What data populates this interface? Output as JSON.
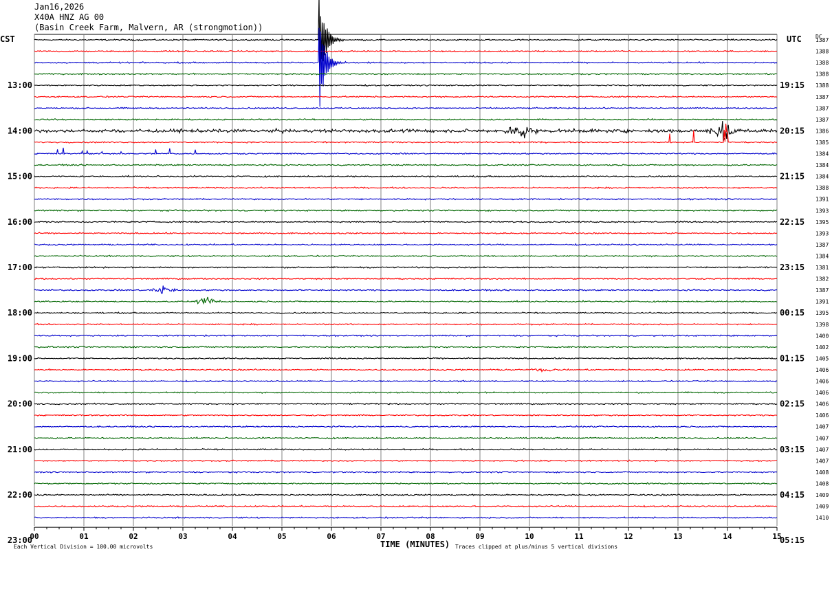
{
  "header": {
    "date": "Jan16,2026",
    "station": "X40A HNZ AG 00",
    "location": "(Basin Creek Farm, Malvern, AR (strongmotion))"
  },
  "left_tz": "CST",
  "right_tz": "UTC",
  "dc_label": "DC",
  "footer": {
    "xlabel": "TIME (MINUTES)",
    "scale": "Each Vertical Division =  100.00 microvolts",
    "clip": "Traces clipped at plus/minus 5 vertical divisions"
  },
  "colors": {
    "cycle": [
      "#000000",
      "#ff0000",
      "#0000cc",
      "#006600"
    ],
    "grid": "#808080"
  },
  "chart_data": {
    "type": "line",
    "title": "X40A HNZ AG 00",
    "xlabel": "TIME (MINUTES)",
    "xlim": [
      0,
      15
    ],
    "x_ticks": [
      "00",
      "01",
      "02",
      "03",
      "04",
      "05",
      "06",
      "07",
      "08",
      "09",
      "10",
      "11",
      "12",
      "13",
      "14",
      "15"
    ],
    "minutes_per_trace": 15,
    "left_hour_labels": [
      "13:00",
      "14:00",
      "15:00",
      "16:00",
      "17:00",
      "18:00",
      "19:00",
      "20:00",
      "21:00",
      "22:00",
      "23:00"
    ],
    "right_hour_labels": [
      "19:15",
      "20:15",
      "21:15",
      "22:15",
      "23:15",
      "00:15",
      "01:15",
      "02:15",
      "03:15",
      "04:15",
      "05:15"
    ],
    "dc_offsets": [
      1387,
      1388,
      1388,
      1388,
      1388,
      1387,
      1387,
      1387,
      1386,
      1385,
      1384,
      1384,
      1384,
      1388,
      1391,
      1393,
      1395,
      1393,
      1387,
      1384,
      1381,
      1382,
      1387,
      1391,
      1395,
      1398,
      1400,
      1402,
      1405,
      1406,
      1406,
      1406,
      1406,
      1406,
      1407,
      1407,
      1407,
      1407,
      1408,
      1408,
      1409,
      1409,
      1410
    ],
    "events": [
      {
        "trace": 0,
        "minute": 5.75,
        "amplitude": 5,
        "type": "spike"
      },
      {
        "trace": 2,
        "minute": 5.75,
        "amplitude": 5,
        "type": "spike"
      },
      {
        "trace": 8,
        "start": 0,
        "end": 15,
        "amplitude": 0.5,
        "type": "noise"
      },
      {
        "trace": 8,
        "minute": 9.85,
        "amplitude": 1.4,
        "type": "burst"
      },
      {
        "trace": 8,
        "minute": 13.9,
        "amplitude": 1.3,
        "type": "burst"
      },
      {
        "trace": 9,
        "minute": 13.1,
        "amplitude": 2.0,
        "type": "spikes"
      },
      {
        "trace": 9,
        "minute": 13.85,
        "amplitude": 3.0,
        "type": "spikes"
      },
      {
        "trace": 10,
        "start": 0.4,
        "end": 3.9,
        "amplitude": 1.0,
        "type": "spikes"
      },
      {
        "trace": 22,
        "minute": 2.6,
        "amplitude": 0.6,
        "type": "burst"
      },
      {
        "trace": 23,
        "minute": 3.5,
        "amplitude": 0.6,
        "type": "burst"
      },
      {
        "trace": 29,
        "minute": 10.3,
        "amplitude": 0.3,
        "type": "burst"
      }
    ]
  }
}
